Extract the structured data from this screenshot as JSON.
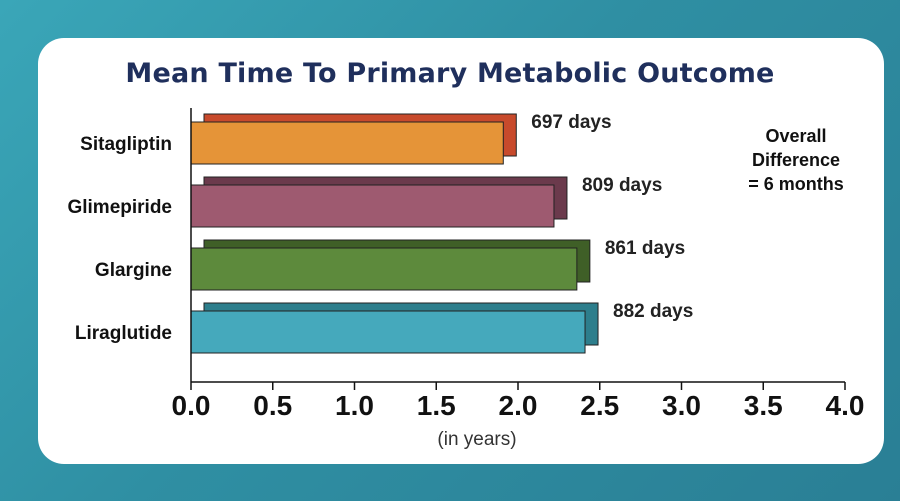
{
  "chart_data": {
    "type": "bar",
    "orientation": "horizontal",
    "title": "Mean Time To Primary Metabolic Outcome",
    "xlabel": "(in years)",
    "ylabel": "",
    "xlim": [
      0,
      4.0
    ],
    "x_ticks": [
      "0.0",
      "0.5",
      "1.0",
      "1.5",
      "2.0",
      "2.5",
      "3.0",
      "3.5",
      "4.0"
    ],
    "categories": [
      "Sitagliptin",
      "Glimepiride",
      "Glargine",
      "Liraglutide"
    ],
    "values": [
      1.91,
      2.22,
      2.36,
      2.41
    ],
    "data_labels": [
      "697 days",
      "809 days",
      "861 days",
      "882 days"
    ],
    "colors": [
      "#e59438",
      "#9e5a70",
      "#5d8a3c",
      "#45a9bc"
    ],
    "shadow_colors": [
      "#c84a2c",
      "#6b3a4c",
      "#3f5f27",
      "#2d7e8c"
    ],
    "annotation": [
      "Overall",
      "Difference",
      "= 6 months"
    ],
    "grid": false
  }
}
